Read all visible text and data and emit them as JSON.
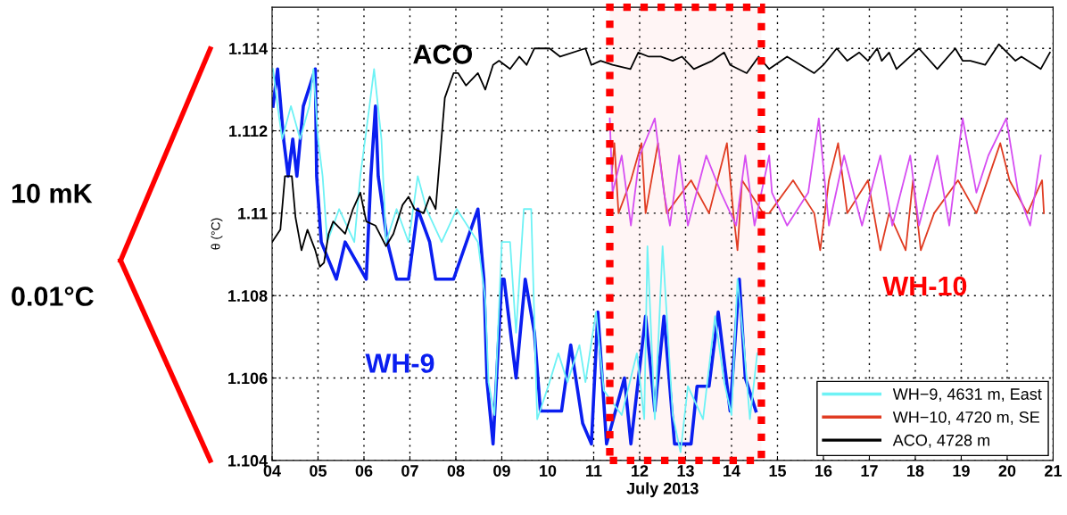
{
  "chart_data": {
    "type": "line",
    "xlabel": "July 2013",
    "ylabel": "θ (°C)",
    "xlim": [
      4,
      21
    ],
    "xticks": [
      {
        "value": 4,
        "label": "04"
      },
      {
        "value": 5,
        "label": "05"
      },
      {
        "value": 6,
        "label": "06"
      },
      {
        "value": 7,
        "label": "07"
      },
      {
        "value": 8,
        "label": "08"
      },
      {
        "value": 9,
        "label": "09"
      },
      10,
      11,
      12,
      13,
      14,
      15,
      16,
      17,
      18,
      19,
      20,
      21
    ],
    "ylim": [
      1.104,
      1.115
    ],
    "yticks": [
      1.104,
      1.106,
      1.108,
      1.11,
      1.112,
      1.114
    ],
    "grid": true,
    "legend": "bottom right",
    "line_style": "solid",
    "bands": [
      {
        "axis": "x",
        "from": 11.35,
        "to": 14.65,
        "color": "#ff0000"
      }
    ],
    "annotations": [
      "10 mK",
      "0.01°C",
      "ACO",
      "WH-9",
      "WH-10"
    ],
    "series": [
      {
        "color": "#0a1ef0",
        "x": [
          4.02,
          4.12,
          4.25,
          4.35,
          4.45,
          4.54,
          4.68,
          4.94,
          4.97,
          5.07,
          5.4,
          5.59,
          6.05,
          6.15,
          6.25,
          6.31,
          6.51,
          6.71,
          6.97,
          7.17,
          7.43,
          7.56,
          7.95,
          8.48,
          8.61,
          8.68,
          8.81,
          9.0,
          9.05,
          9.31,
          9.51,
          9.71,
          9.84,
          10.1,
          10.3,
          10.5,
          10.76,
          10.95,
          11.09,
          11.28,
          11.67,
          11.81,
          12.13,
          12.33,
          12.53,
          12.76,
          13.12,
          13.25,
          13.51,
          13.71,
          13.97,
          14.17,
          14.3,
          14.53
        ],
        "values": [
          1.1126,
          1.1135,
          1.1118,
          1.1109,
          1.1118,
          1.1109,
          1.1126,
          1.1135,
          1.1109,
          1.1093,
          1.1084,
          1.1093,
          1.1084,
          1.1109,
          1.1126,
          1.1109,
          1.1093,
          1.1084,
          1.1084,
          1.1101,
          1.1093,
          1.1084,
          1.1084,
          1.1101,
          1.1084,
          1.1059,
          1.1044,
          1.1084,
          1.1084,
          1.106,
          1.1084,
          1.1071,
          1.1052,
          1.1052,
          1.1052,
          1.1068,
          1.1049,
          1.1044,
          1.1076,
          1.1044,
          1.106,
          1.1044,
          1.1075,
          1.1052,
          1.1075,
          1.1044,
          1.1044,
          1.1058,
          1.1058,
          1.1076,
          1.1052,
          1.1084,
          1.106,
          1.1052
        ]
      },
      {
        "name": "WH−9, 4631 m, East",
        "color": "#6ef2f5",
        "x": [
          4.02,
          4.12,
          4.22,
          4.41,
          4.61,
          4.81,
          4.9,
          5.0,
          5.1,
          5.2,
          5.46,
          5.79,
          5.92,
          6.12,
          6.22,
          6.38,
          6.48,
          6.71,
          6.97,
          7.17,
          7.36,
          7.69,
          8.02,
          8.48,
          8.64,
          8.71,
          8.84,
          9.0,
          9.18,
          9.31,
          9.48,
          9.64,
          9.77,
          10.04,
          10.23,
          10.43,
          10.69,
          10.82,
          11.05,
          11.22,
          11.61,
          11.94,
          12.1,
          12.17,
          12.33,
          12.5,
          12.72,
          12.89,
          13.05,
          13.38,
          13.64,
          13.84,
          14.0,
          14.13,
          14.27,
          14.4,
          14.56
        ],
        "values": [
          1.1135,
          1.1126,
          1.1118,
          1.1126,
          1.1118,
          1.1126,
          1.1135,
          1.1118,
          1.1109,
          1.1093,
          1.1101,
          1.1093,
          1.1109,
          1.1126,
          1.1135,
          1.1118,
          1.1093,
          1.1101,
          1.1093,
          1.1109,
          1.1101,
          1.1093,
          1.1101,
          1.1093,
          1.1079,
          1.1059,
          1.1051,
          1.1093,
          1.1093,
          1.1071,
          1.1101,
          1.1101,
          1.105,
          1.1059,
          1.1066,
          1.1059,
          1.1068,
          1.1059,
          1.1076,
          1.1057,
          1.1051,
          1.1066,
          1.105,
          1.1092,
          1.105,
          1.1092,
          1.1051,
          1.1042,
          1.1058,
          1.105,
          1.1075,
          1.1059,
          1.1051,
          1.1084,
          1.1068,
          1.105,
          1.1066
        ]
      },
      {
        "name": "WH−10, 4720 m, SE",
        "color": "#e03c22",
        "x": [
          11.38,
          11.45,
          11.54,
          11.81,
          12.04,
          12.13,
          12.4,
          12.59,
          13.12,
          13.51,
          13.9,
          14.04,
          14.13,
          14.23,
          14.69,
          14.82,
          15.34,
          15.8,
          15.93,
          16.12,
          16.32,
          16.52,
          16.97,
          17.24,
          17.43,
          17.79,
          17.95,
          18.12,
          18.41,
          18.93,
          19.33,
          19.85,
          20.05,
          20.44,
          20.76,
          20.8
        ],
        "values": [
          1.1108,
          1.1117,
          1.11,
          1.1108,
          1.1117,
          1.11,
          1.1117,
          1.11,
          1.1108,
          1.11,
          1.1117,
          1.11,
          1.1091,
          1.1108,
          1.11,
          1.11,
          1.1108,
          1.11,
          1.1091,
          1.1108,
          1.1117,
          1.11,
          1.1108,
          1.1091,
          1.11,
          1.1091,
          1.1108,
          1.1091,
          1.11,
          1.1108,
          1.11,
          1.1117,
          1.1108,
          1.11,
          1.1108,
          1.11
        ]
      },
      {
        "color": "#d64ef2",
        "x": [
          11.35,
          11.41,
          11.61,
          11.81,
          12.0,
          12.33,
          12.53,
          12.66,
          12.86,
          13.05,
          13.45,
          13.77,
          14.1,
          14.3,
          14.5,
          14.82,
          14.88,
          15.21,
          15.67,
          15.9,
          16.12,
          16.45,
          16.84,
          17.24,
          17.5,
          17.89,
          18.08,
          18.48,
          18.74,
          19.03,
          19.33,
          19.59,
          19.98,
          20.24,
          20.5,
          20.73
        ],
        "values": [
          1.1123,
          1.1105,
          1.1114,
          1.1097,
          1.1114,
          1.1123,
          1.1105,
          1.1097,
          1.1114,
          1.1097,
          1.1114,
          1.1105,
          1.1097,
          1.1114,
          1.1097,
          1.1114,
          1.1105,
          1.1097,
          1.1105,
          1.1123,
          1.1097,
          1.1114,
          1.1097,
          1.1114,
          1.1097,
          1.1114,
          1.1097,
          1.1114,
          1.1097,
          1.1123,
          1.1105,
          1.1114,
          1.1123,
          1.1105,
          1.1097,
          1.1114
        ]
      },
      {
        "name": "ACO, 4728 m",
        "color": "#000000",
        "x": [
          4.0,
          4.18,
          4.28,
          4.43,
          4.51,
          4.64,
          4.77,
          4.94,
          5.04,
          5.13,
          5.23,
          5.33,
          5.59,
          5.76,
          5.92,
          6.05,
          6.25,
          6.48,
          6.64,
          6.84,
          6.97,
          7.1,
          7.3,
          7.43,
          7.56,
          7.76,
          7.95,
          8.05,
          8.22,
          8.48,
          8.64,
          8.81,
          8.94,
          9.18,
          9.38,
          9.54,
          9.71,
          9.87,
          10.04,
          10.27,
          10.82,
          10.95,
          11.15,
          11.41,
          11.8,
          11.97,
          12.2,
          12.46,
          12.72,
          12.92,
          13.18,
          13.58,
          13.84,
          13.97,
          14.33,
          14.59,
          14.82,
          15.21,
          15.8,
          16.0,
          16.29,
          16.52,
          16.78,
          16.97,
          17.17,
          17.27,
          17.43,
          17.59,
          18.08,
          18.48,
          18.87,
          19.03,
          19.2,
          19.52,
          19.82,
          20.18,
          20.31,
          20.73,
          20.93
        ],
        "values": [
          1.1093,
          1.1096,
          1.1109,
          1.1109,
          1.1099,
          1.1091,
          1.1096,
          1.1091,
          1.1087,
          1.1088,
          1.1095,
          1.1098,
          1.1095,
          1.1101,
          1.1105,
          1.1098,
          1.1097,
          1.1092,
          1.1095,
          1.1102,
          1.1104,
          1.1101,
          1.11,
          1.1104,
          1.1101,
          1.1128,
          1.1134,
          1.1134,
          1.1131,
          1.1134,
          1.113,
          1.1136,
          1.1137,
          1.1135,
          1.1138,
          1.1136,
          1.114,
          1.114,
          1.114,
          1.1138,
          1.114,
          1.1136,
          1.1137,
          1.1136,
          1.1135,
          1.1139,
          1.1138,
          1.1138,
          1.1137,
          1.1138,
          1.1135,
          1.1137,
          1.1139,
          1.1136,
          1.1134,
          1.1138,
          1.1135,
          1.1138,
          1.1134,
          1.1136,
          1.114,
          1.1137,
          1.1139,
          1.1137,
          1.114,
          1.1137,
          1.1139,
          1.1135,
          1.114,
          1.1135,
          1.114,
          1.1137,
          1.1137,
          1.1136,
          1.1141,
          1.1137,
          1.1138,
          1.1135,
          1.1139
        ]
      }
    ]
  }
}
